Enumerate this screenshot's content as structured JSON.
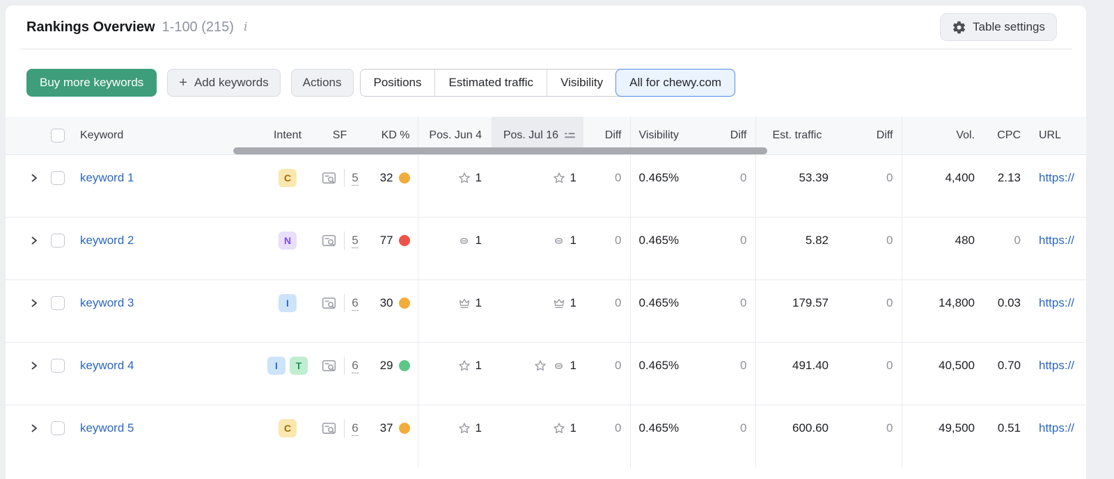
{
  "header": {
    "title": "Rankings Overview",
    "range_label": "1-100 (215)",
    "info_symbol": "i",
    "table_settings": "Table settings"
  },
  "toolbar": {
    "buy_keywords": "Buy more keywords",
    "add_plus": "+",
    "add_keywords": "Add keywords",
    "actions": "Actions",
    "view_tabs": [
      "Positions",
      "Estimated traffic",
      "Visibility",
      "All for chewy.com"
    ],
    "selected_tab": "All for chewy.com"
  },
  "table": {
    "headers": {
      "keyword": "Keyword",
      "intent": "Intent",
      "sf": "SF",
      "kd": "KD %",
      "pos_jun": "Pos. Jun 4",
      "pos_jul": "Pos. Jul 16",
      "diff": "Diff",
      "visibility": "Visibility",
      "diff2": "Diff",
      "est_traffic": "Est. traffic",
      "diff3": "Diff",
      "volume": "Vol.",
      "cpc": "CPC",
      "url": "URL"
    },
    "sorted_by": "Pos. Jul 16",
    "rows": [
      {
        "keyword": "keyword 1",
        "intents": [
          "C"
        ],
        "sf": "5",
        "kd": "32",
        "kd_color": "#f2ac3c",
        "pos_jun": {
          "icons": [
            "star"
          ],
          "value": "1"
        },
        "pos_jul": {
          "icons": [
            "star"
          ],
          "value": "1"
        },
        "diff": "0",
        "visibility": "0.465%",
        "visibility_diff": "0",
        "est_traffic": "53.39",
        "est_traffic_diff": "0",
        "volume": "4,400",
        "cpc": "2.13",
        "url": "https://"
      },
      {
        "keyword": "keyword 2",
        "intents": [
          "N"
        ],
        "sf": "5",
        "kd": "77",
        "kd_color": "#ee5248",
        "pos_jun": {
          "icons": [
            "link"
          ],
          "value": "1"
        },
        "pos_jul": {
          "icons": [
            "link"
          ],
          "value": "1"
        },
        "diff": "0",
        "visibility": "0.465%",
        "visibility_diff": "0",
        "est_traffic": "5.82",
        "est_traffic_diff": "0",
        "volume": "480",
        "cpc": "0",
        "url": "https://"
      },
      {
        "keyword": "keyword 3",
        "intents": [
          "I"
        ],
        "sf": "6",
        "kd": "30",
        "kd_color": "#f2ac3c",
        "pos_jun": {
          "icons": [
            "crown"
          ],
          "value": "1"
        },
        "pos_jul": {
          "icons": [
            "crown"
          ],
          "value": "1"
        },
        "diff": "0",
        "visibility": "0.465%",
        "visibility_diff": "0",
        "est_traffic": "179.57",
        "est_traffic_diff": "0",
        "volume": "14,800",
        "cpc": "0.03",
        "url": "https://"
      },
      {
        "keyword": "keyword 4",
        "intents": [
          "I",
          "T"
        ],
        "sf": "6",
        "kd": "29",
        "kd_color": "#5fc689",
        "pos_jun": {
          "icons": [
            "star"
          ],
          "value": "1"
        },
        "pos_jul": {
          "icons": [
            "star",
            "link"
          ],
          "value": "1"
        },
        "diff": "0",
        "visibility": "0.465%",
        "visibility_diff": "0",
        "est_traffic": "491.40",
        "est_traffic_diff": "0",
        "volume": "40,500",
        "cpc": "0.70",
        "url": "https://"
      },
      {
        "keyword": "keyword 5",
        "intents": [
          "C"
        ],
        "sf": "6",
        "kd": "37",
        "kd_color": "#f2ac3c",
        "pos_jun": {
          "icons": [
            "star"
          ],
          "value": "1"
        },
        "pos_jul": {
          "icons": [
            "star"
          ],
          "value": "1"
        },
        "diff": "0",
        "visibility": "0.465%",
        "visibility_diff": "0",
        "est_traffic": "600.60",
        "est_traffic_diff": "0",
        "volume": "49,500",
        "cpc": "0.51",
        "url": "https://"
      }
    ]
  },
  "intent_badges": {
    "C": {
      "name": "commercial",
      "bg": "#fbe8b0",
      "fg": "#a16a07"
    },
    "N": {
      "name": "navigational",
      "bg": "#e9defc",
      "fg": "#7d4de8"
    },
    "I": {
      "name": "informational",
      "bg": "#cde3f8",
      "fg": "#2f6fc4"
    },
    "T": {
      "name": "transactional",
      "bg": "#c0eed0",
      "fg": "#1d9553"
    }
  },
  "colors": {
    "primary_button_green": "#3e9d7b",
    "link_blue": "#2b66c2",
    "selected_tab_border": "#5388e8",
    "selected_tab_bg": "#eaf3fe",
    "kd_dot_medium": "#f2ac3c",
    "kd_dot_hard": "#ee5248",
    "kd_dot_easy": "#5fc689"
  }
}
